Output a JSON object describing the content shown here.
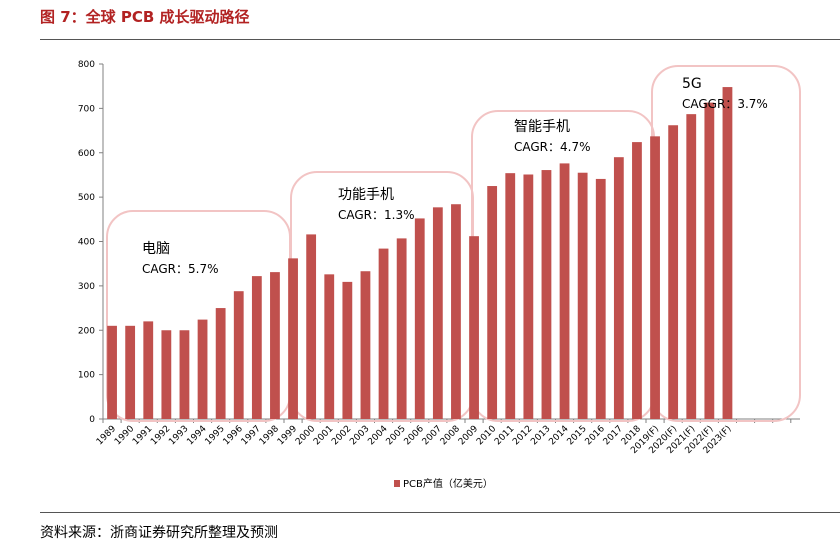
{
  "header": {
    "title": "图 7：全球 PCB 成长驱动路径"
  },
  "footer": {
    "source": "资料来源：浙商证券研究所整理及预测"
  },
  "colors": {
    "bar": "#c0504d",
    "title": "#b22222",
    "box": "#f2c4c4"
  },
  "chart_data": {
    "type": "bar",
    "title": "",
    "xlabel": "",
    "ylabel": "",
    "ylim": [
      0,
      800
    ],
    "yticks": [
      0,
      100,
      200,
      300,
      400,
      500,
      600,
      700,
      800
    ],
    "legend": {
      "position": "bottom",
      "label": "PCB产值（亿美元）"
    },
    "categories": [
      "1989",
      "1990",
      "1991",
      "1992",
      "1993",
      "1994",
      "1995",
      "1996",
      "1997",
      "1998",
      "1999",
      "2000",
      "2001",
      "2002",
      "2003",
      "2004",
      "2005",
      "2006",
      "2007",
      "2008",
      "2009",
      "2010",
      "2011",
      "2012",
      "2013",
      "2014",
      "2015",
      "2016",
      "2017",
      "2018",
      "2019(F)",
      "2020(F)",
      "2021(F)",
      "2022(F)",
      "2023(F)"
    ],
    "series": [
      {
        "name": "PCB产值（亿美元）",
        "values": [
          210,
          210,
          220,
          200,
          200,
          224,
          250,
          288,
          322,
          331,
          362,
          416,
          326,
          309,
          333,
          384,
          407,
          452,
          477,
          484,
          412,
          525,
          554,
          551,
          561,
          576,
          555,
          541,
          590,
          624,
          637,
          662,
          687,
          713,
          748
        ]
      }
    ],
    "annotations": [
      {
        "name": "电脑",
        "cagr": "CAGR：5.7%"
      },
      {
        "name": "功能手机",
        "cagr": "CAGR：1.3%"
      },
      {
        "name": "智能手机",
        "cagr": "CAGR：4.7%"
      },
      {
        "name": "5G",
        "cagr": "CAGGR：3.7%"
      }
    ]
  }
}
